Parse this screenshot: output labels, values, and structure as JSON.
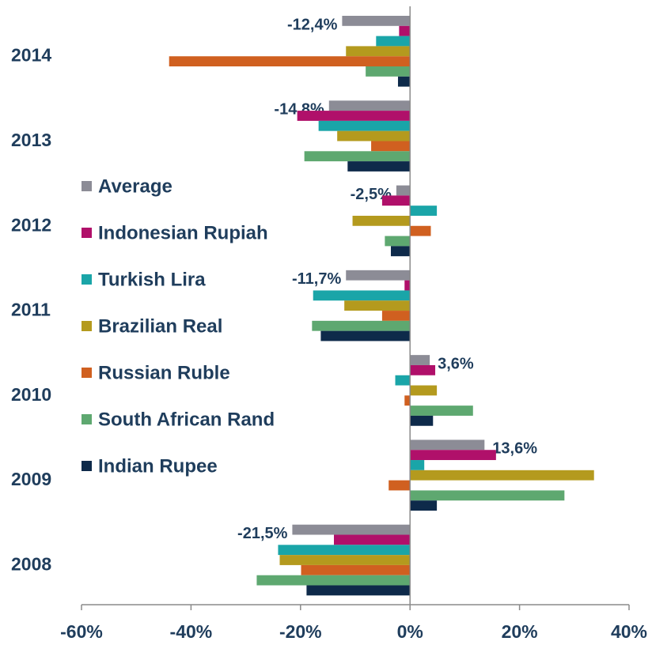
{
  "chart_data": {
    "type": "hbar",
    "categories": [
      "2014",
      "2013",
      "2012",
      "2011",
      "2010",
      "2009",
      "2008"
    ],
    "series": [
      {
        "name": "Average",
        "color": "#8c8c96",
        "values": [
          -12.4,
          -14.8,
          -2.5,
          -11.7,
          3.6,
          13.6,
          -21.5
        ],
        "value_labels": [
          "-12,4%",
          "-14,8%",
          "-2,5%",
          "-11,7%",
          "3,6%",
          "13,6%",
          "-21,5%"
        ]
      },
      {
        "name": "Indonesian Rupiah",
        "color": "#b0106a",
        "values": [
          -2.0,
          -20.6,
          -5.1,
          -1.0,
          4.6,
          15.7,
          -13.9
        ]
      },
      {
        "name": "Turkish Lira",
        "color": "#1aa5a8",
        "values": [
          -6.2,
          -16.7,
          4.9,
          -17.7,
          -2.7,
          2.6,
          -24.1
        ]
      },
      {
        "name": "Brazilian Real",
        "color": "#b49a1e",
        "values": [
          -11.7,
          -13.3,
          -10.5,
          -12.0,
          4.9,
          33.6,
          -23.8
        ]
      },
      {
        "name": "Russian Ruble",
        "color": "#d06020",
        "values": [
          -44.0,
          -7.1,
          3.8,
          -5.1,
          -1.0,
          -3.9,
          -19.9
        ]
      },
      {
        "name": "South African Rand",
        "color": "#5ea870",
        "values": [
          -8.1,
          -19.3,
          -4.6,
          -17.9,
          11.5,
          28.2,
          -28.0
        ]
      },
      {
        "name": "Indian Rupee",
        "color": "#0e2a4a",
        "values": [
          -2.2,
          -11.4,
          -3.5,
          -16.3,
          4.2,
          4.9,
          -18.9
        ]
      }
    ],
    "xlim": [
      -60,
      40
    ],
    "xticks": [
      {
        "value": -60,
        "label": "-60%"
      },
      {
        "value": -40,
        "label": "-40%"
      },
      {
        "value": -20,
        "label": "-20%"
      },
      {
        "value": 0,
        "label": "0%"
      },
      {
        "value": 20,
        "label": "20%"
      },
      {
        "value": 40,
        "label": "40%"
      }
    ]
  }
}
